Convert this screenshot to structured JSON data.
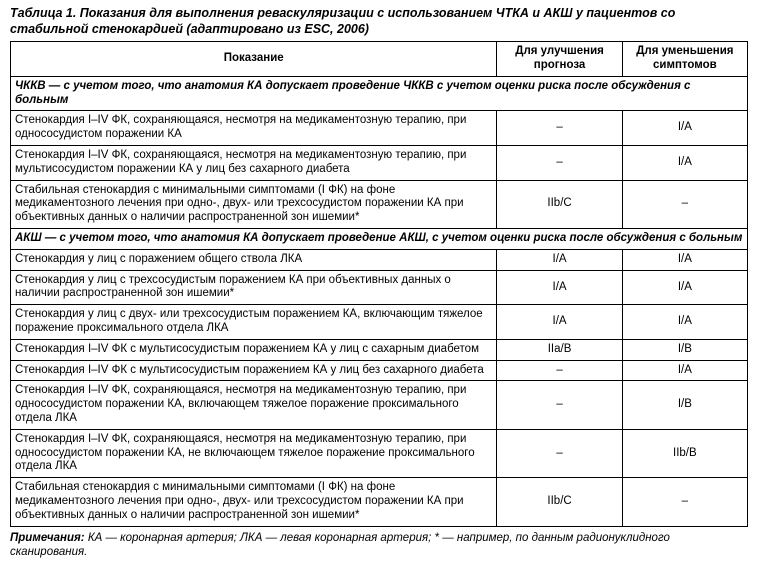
{
  "caption": "Таблица 1. Показания для выполнения реваскуляризации с использованием ЧТКА и АКШ у пациентов со стабильной стенокардией (адаптировано из ESC, 2006)",
  "headers": {
    "indication": "Показание",
    "prognosis": "Для улучшения прогноза",
    "symptoms": "Для уменьшения симптомов"
  },
  "sections": [
    {
      "title": "ЧККВ — с учетом того, что анатомия КА допускает проведение ЧККВ с учетом оценки риска после обсуждения с больным",
      "rows": [
        {
          "indication": "Стенокардия I–IV ФК, сохраняющаяся, несмотря на медикаментозную терапию, при однососудистом поражении КА",
          "prognosis": "–",
          "symptoms": "I/A"
        },
        {
          "indication": "Стенокардия I–IV ФК, сохраняющаяся, несмотря на медикаментозную терапию, при мультисосудистом поражении КА у лиц без сахарного диабета",
          "prognosis": "–",
          "symptoms": "I/A"
        },
        {
          "indication": "Стабильная стенокардия с минимальными симптомами (I ФК) на фоне медикаментозного лечения при одно-, двух- или трехсосудистом поражении КА при объективных данных о наличии распространенной зон ишемии*",
          "prognosis": "IIb/C",
          "symptoms": "–"
        }
      ]
    },
    {
      "title": "АКШ — с учетом того, что анатомия КА допускает проведение АКШ, с учетом оценки риска после обсуждения с больным",
      "rows": [
        {
          "indication": "Стенокардия у лиц с поражением общего ствола ЛКА",
          "prognosis": "I/A",
          "symptoms": "I/A"
        },
        {
          "indication": "Стенокардия у лиц с трехсосудистым поражением КА при объективных данных о наличии распространенной зон ишемии*",
          "prognosis": "I/A",
          "symptoms": "I/A"
        },
        {
          "indication": "Стенокардия у лиц с двух- или трехсосудистым поражением КА, включающим тяжелое поражение проксимального отдела ЛКА",
          "prognosis": "I/A",
          "symptoms": "I/A"
        },
        {
          "indication": "Стенокардия I–IV ФК с мультисосудистым поражением КА у лиц с сахарным диабетом",
          "prognosis": "IIa/B",
          "symptoms": "I/B"
        },
        {
          "indication": "Стенокардия I–IV ФК с мультисосудистым поражением КА у лиц без сахарного диабета",
          "prognosis": "–",
          "symptoms": "I/A"
        },
        {
          "indication": "Стенокардия I–IV ФК, сохраняющаяся, несмотря на медикаментозную терапию, при однососудистом поражении КА, включающем тяжелое поражение проксимального отдела ЛКА",
          "prognosis": "–",
          "symptoms": "I/B"
        },
        {
          "indication": "Стенокардия I–IV ФК, сохраняющаяся, несмотря на медикаментозную терапию, при однососудистом поражении КА, не включающем тяжелое поражение проксимального отдела ЛКА",
          "prognosis": "–",
          "symptoms": "IIb/B"
        },
        {
          "indication": "Стабильная стенокардия с минимальными симптомами (I ФК) на фоне медикаментозного лечения при одно-, двух- или трехсосудистом поражении КА при объективных данных о наличии распространенной зон ишемии*",
          "prognosis": "IIb/C",
          "symptoms": "–"
        }
      ]
    }
  ],
  "notes": {
    "label": "Примечания:",
    "text": " КА — коронарная артерия; ЛКА — левая коронарная артерия; * — например, по данным радионуклидного сканирования."
  }
}
